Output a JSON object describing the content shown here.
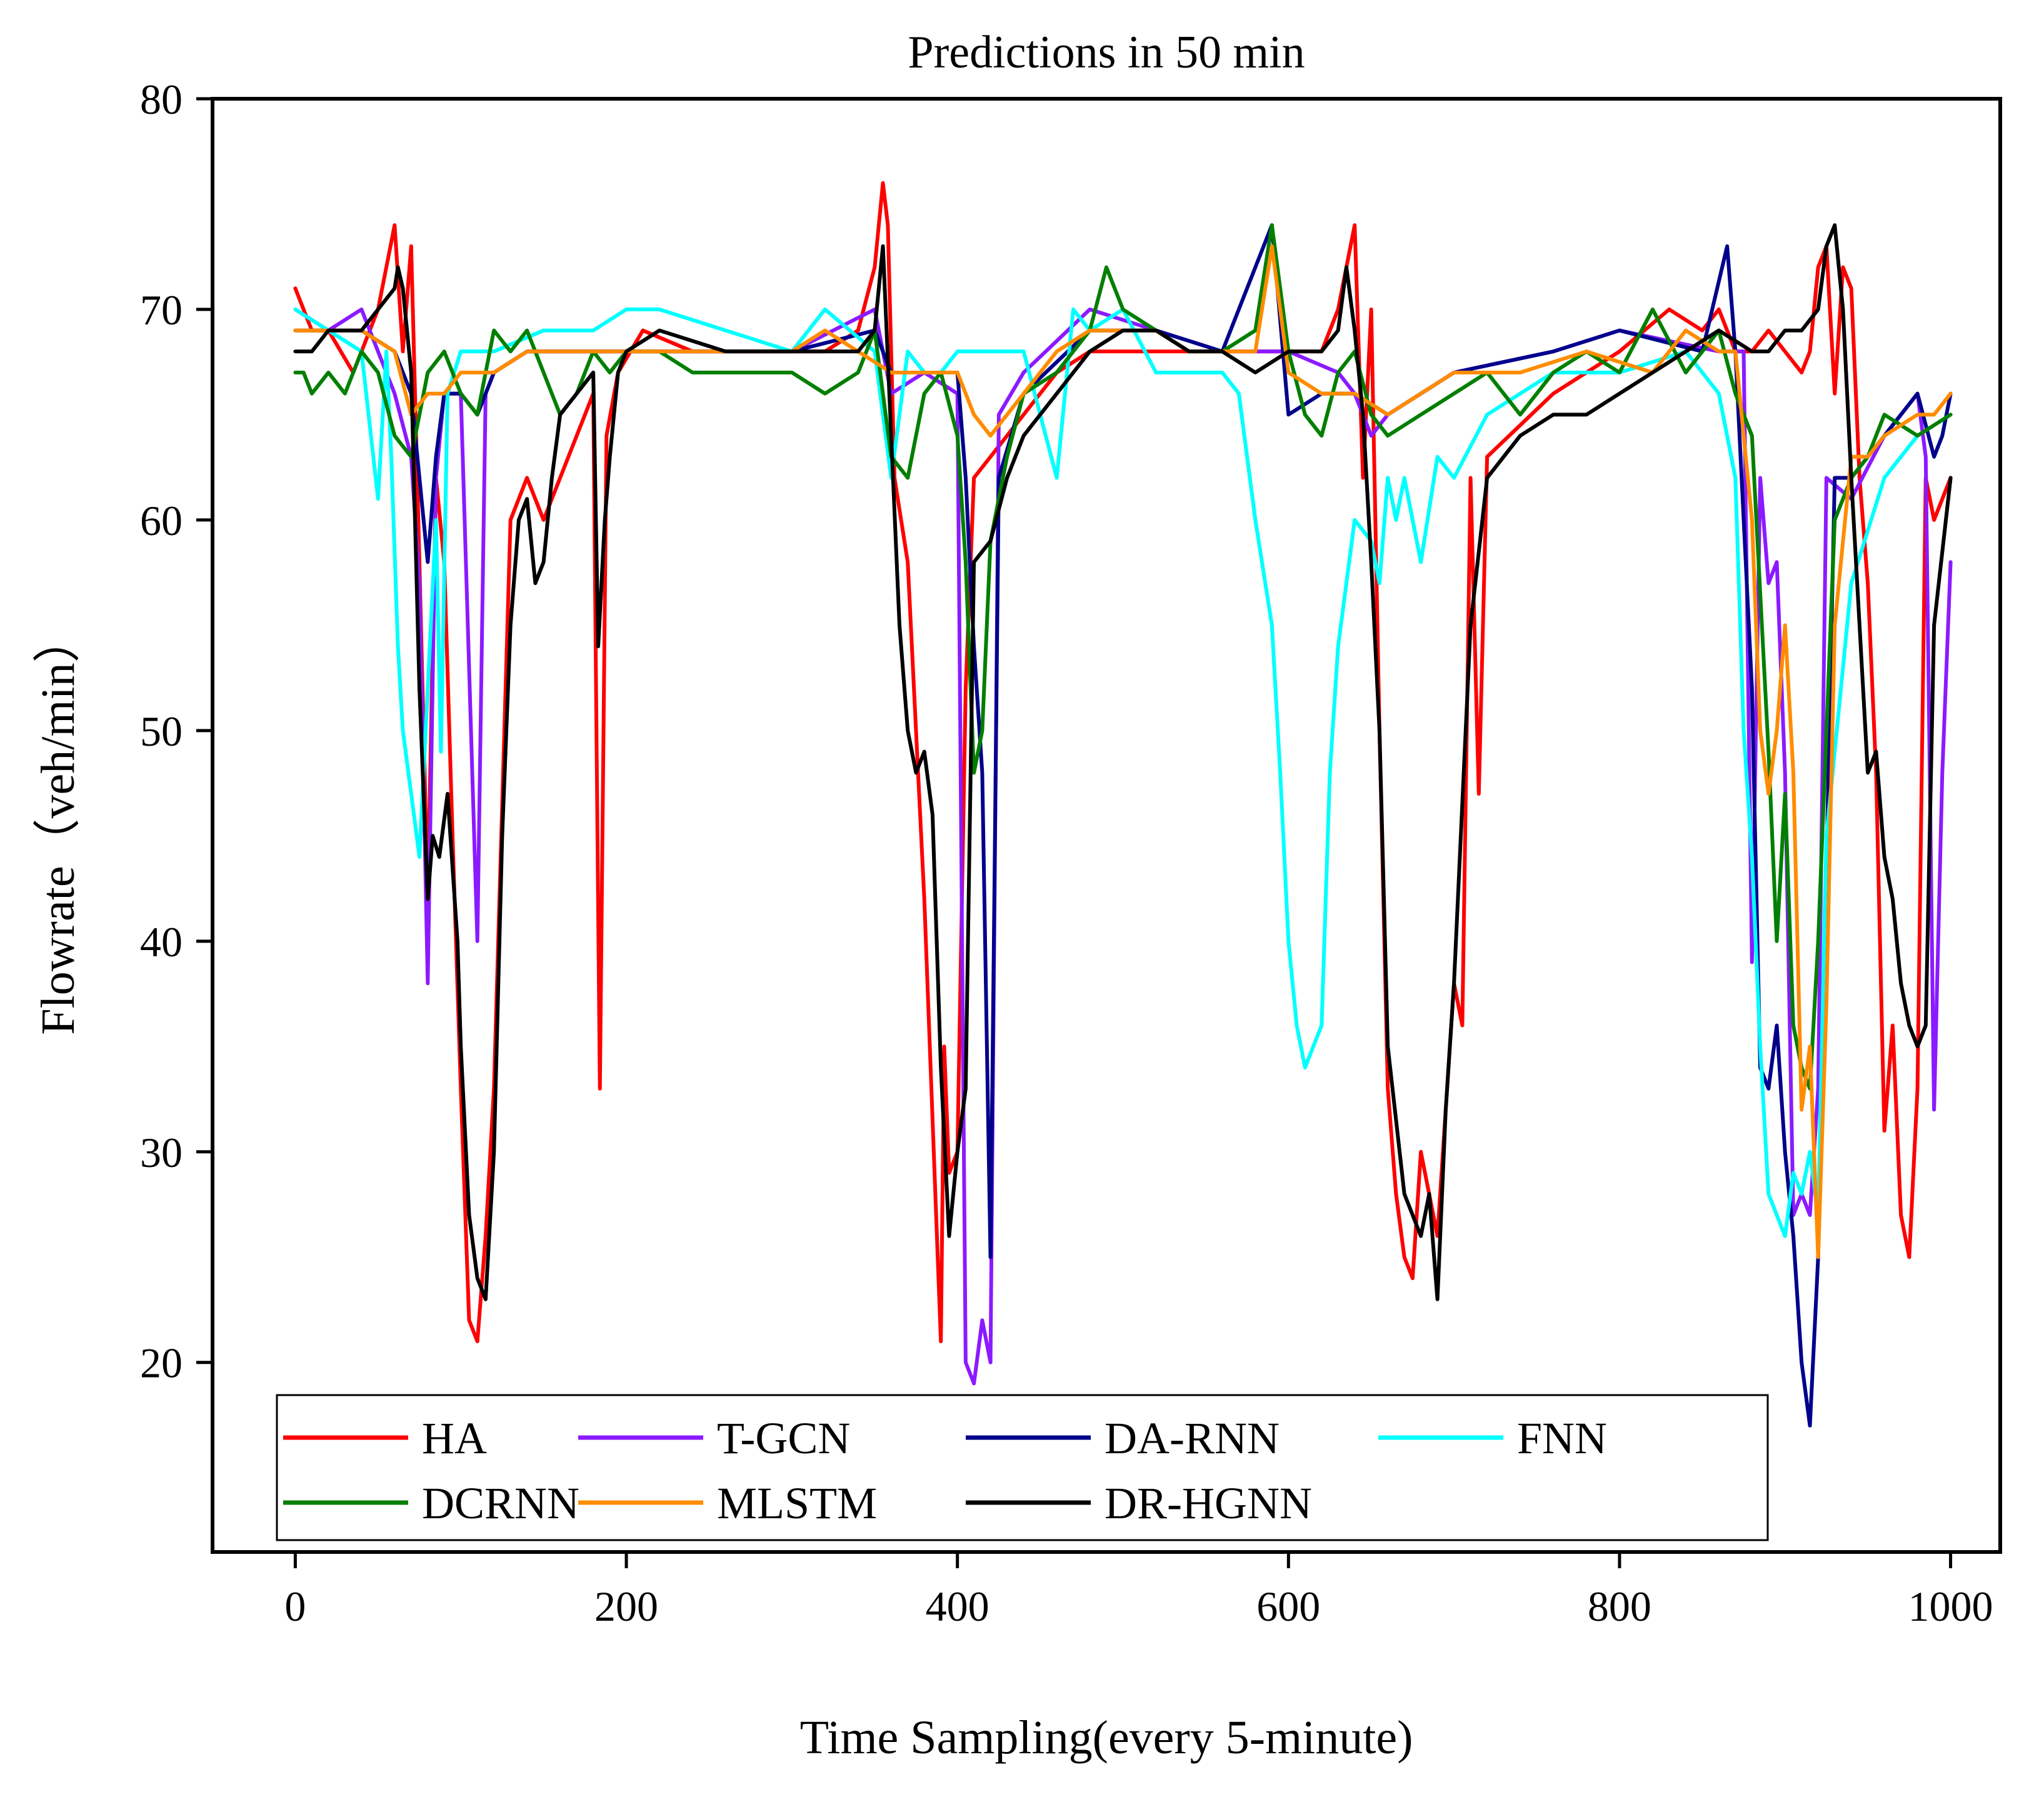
{
  "chart_data": {
    "type": "line",
    "title": "Predictions in 50 min",
    "xlabel": "Time Sampling(every 5-minute)",
    "ylabel": "Flowrate（veh/min）",
    "xlim": [
      -50,
      1030
    ],
    "ylim": [
      11,
      80
    ],
    "xticks": [
      0,
      200,
      400,
      600,
      800,
      1000
    ],
    "yticks": [
      20,
      30,
      40,
      50,
      60,
      70,
      80
    ],
    "grid": false,
    "legend_position": "bottom-left, inside axes, 4 columns",
    "series": [
      {
        "name": "HA",
        "color": "#ff0000",
        "x": [
          0,
          10,
          20,
          35,
          50,
          60,
          65,
          70,
          75,
          80,
          85,
          90,
          95,
          100,
          105,
          110,
          115,
          120,
          130,
          140,
          150,
          160,
          170,
          180,
          184,
          188,
          195,
          210,
          240,
          280,
          320,
          340,
          350,
          355,
          358,
          362,
          370,
          380,
          390,
          392,
          395,
          400,
          405,
          410,
          420,
          440,
          460,
          480,
          500,
          520,
          560,
          600,
          620,
          630,
          640,
          645,
          650,
          655,
          660,
          665,
          670,
          675,
          680,
          690,
          700,
          705,
          710,
          715,
          720,
          760,
          800,
          830,
          850,
          860,
          870,
          880,
          890,
          900,
          910,
          915,
          920,
          925,
          930,
          935,
          940,
          945,
          950,
          955,
          960,
          965,
          970,
          975,
          980,
          985,
          990,
          1000
        ],
        "y": [
          71,
          69,
          69,
          67,
          70,
          74,
          68,
          73,
          58,
          42,
          62,
          58,
          45,
          33,
          22,
          21,
          26,
          33,
          60,
          62,
          60,
          62,
          64,
          66,
          33,
          64,
          67,
          69,
          68,
          68,
          68,
          69,
          72,
          76,
          74,
          62,
          58,
          42,
          21,
          35,
          29,
          30,
          52,
          62,
          63,
          65,
          67,
          68,
          68,
          68,
          68,
          68,
          68,
          70,
          74,
          62,
          70,
          50,
          33,
          28,
          25,
          24,
          30,
          26,
          38,
          36,
          62,
          47,
          63,
          66,
          68,
          70,
          69,
          70,
          68,
          68,
          69,
          68,
          67,
          68,
          72,
          73,
          66,
          72,
          71,
          62,
          57,
          48,
          31,
          36,
          27,
          25,
          33,
          62,
          60,
          62
        ]
      },
      {
        "name": "T-GCN",
        "color": "#8b1aff",
        "x": [
          0,
          20,
          40,
          60,
          70,
          75,
          80,
          85,
          90,
          100,
          110,
          115,
          120,
          140,
          200,
          300,
          350,
          360,
          380,
          400,
          405,
          410,
          415,
          420,
          425,
          440,
          480,
          520,
          560,
          600,
          630,
          640,
          650,
          660,
          700,
          760,
          800,
          860,
          875,
          880,
          885,
          890,
          895,
          900,
          905,
          910,
          915,
          920,
          925,
          940,
          960,
          980,
          985,
          990,
          995,
          1000
        ],
        "y": [
          70,
          69,
          70,
          66,
          63,
          57,
          38,
          62,
          66,
          66,
          40,
          66,
          67,
          68,
          68,
          68,
          70,
          66,
          67,
          66,
          20,
          19,
          22,
          20,
          65,
          67,
          70,
          69,
          68,
          68,
          67,
          66,
          64,
          65,
          67,
          68,
          69,
          68,
          68,
          39,
          62,
          57,
          58,
          48,
          27,
          28,
          27,
          33,
          62,
          61,
          64,
          66,
          63,
          32,
          48,
          58
        ]
      },
      {
        "name": "DA-RNN",
        "color": "#00008b",
        "x": [
          0,
          20,
          40,
          60,
          70,
          75,
          80,
          85,
          90,
          100,
          110,
          120,
          140,
          200,
          300,
          350,
          360,
          380,
          400,
          405,
          410,
          415,
          420,
          425,
          440,
          480,
          520,
          560,
          590,
          600,
          620,
          640,
          660,
          700,
          760,
          800,
          850,
          865,
          870,
          880,
          885,
          890,
          895,
          900,
          905,
          910,
          915,
          920,
          930,
          940,
          960,
          980,
          990,
          995,
          1000
        ],
        "y": [
          69,
          69,
          69,
          68,
          66,
          62,
          58,
          63,
          66,
          66,
          65,
          67,
          68,
          68,
          68,
          69,
          67,
          67,
          67,
          62,
          54,
          48,
          25,
          62,
          66,
          69,
          69,
          68,
          74,
          65,
          66,
          66,
          65,
          67,
          68,
          69,
          68,
          73,
          68,
          52,
          34,
          33,
          36,
          30,
          26,
          20,
          17,
          25,
          62,
          62,
          64,
          66,
          63,
          64,
          66
        ]
      },
      {
        "name": "FNN",
        "color": "#00ffff",
        "x": [
          0,
          20,
          40,
          50,
          55,
          58,
          62,
          65,
          70,
          75,
          80,
          85,
          88,
          92,
          100,
          120,
          150,
          180,
          200,
          220,
          260,
          300,
          320,
          350,
          360,
          370,
          380,
          390,
          400,
          420,
          440,
          460,
          470,
          480,
          500,
          520,
          560,
          570,
          580,
          590,
          595,
          600,
          605,
          610,
          615,
          620,
          625,
          630,
          640,
          650,
          655,
          660,
          665,
          670,
          680,
          690,
          700,
          720,
          760,
          800,
          840,
          860,
          870,
          875,
          880,
          885,
          890,
          895,
          900,
          905,
          910,
          915,
          920,
          925,
          940,
          960,
          980,
          1000
        ],
        "y": [
          70,
          69,
          68,
          61,
          68,
          63,
          54,
          50,
          47,
          44,
          52,
          60,
          49,
          66,
          68,
          68,
          69,
          69,
          70,
          70,
          69,
          68,
          70,
          68,
          62,
          68,
          67,
          67,
          68,
          68,
          68,
          62,
          70,
          69,
          70,
          67,
          67,
          66,
          60,
          55,
          48,
          40,
          36,
          34,
          35,
          36,
          48,
          54,
          60,
          59,
          57,
          62,
          60,
          62,
          58,
          63,
          62,
          65,
          67,
          67,
          68,
          66,
          62,
          50,
          44,
          35,
          28,
          27,
          26,
          29,
          28,
          30,
          27,
          45,
          57,
          62,
          64,
          65
        ]
      },
      {
        "name": "DCRNN",
        "color": "#007f00",
        "x": [
          0,
          5,
          10,
          20,
          30,
          40,
          50,
          60,
          70,
          80,
          90,
          100,
          110,
          120,
          130,
          140,
          150,
          160,
          170,
          180,
          190,
          200,
          220,
          240,
          260,
          280,
          300,
          320,
          340,
          350,
          360,
          370,
          380,
          390,
          400,
          405,
          410,
          415,
          420,
          430,
          440,
          460,
          470,
          480,
          490,
          500,
          520,
          540,
          560,
          580,
          590,
          600,
          610,
          620,
          630,
          640,
          650,
          660,
          680,
          700,
          720,
          740,
          760,
          780,
          800,
          820,
          840,
          860,
          870,
          880,
          890,
          895,
          900,
          905,
          910,
          915,
          920,
          930,
          940,
          950,
          960,
          980,
          1000
        ],
        "y": [
          67,
          67,
          66,
          67,
          66,
          68,
          67,
          64,
          63,
          67,
          68,
          66,
          65,
          69,
          68,
          69,
          67,
          65,
          66,
          68,
          67,
          68,
          68,
          67,
          67,
          67,
          67,
          66,
          67,
          69,
          63,
          62,
          66,
          67,
          64,
          58,
          48,
          50,
          59,
          63,
          66,
          67,
          68,
          69,
          72,
          70,
          69,
          68,
          68,
          69,
          74,
          68,
          65,
          64,
          67,
          68,
          65,
          64,
          65,
          66,
          67,
          65,
          67,
          68,
          67,
          70,
          67,
          69,
          66,
          64,
          49,
          40,
          47,
          36,
          34,
          33,
          40,
          60,
          62,
          63,
          65,
          64,
          65
        ]
      },
      {
        "name": "MLSTM",
        "color": "#ff8c00",
        "x": [
          0,
          20,
          40,
          60,
          70,
          80,
          90,
          100,
          120,
          140,
          160,
          180,
          200,
          220,
          260,
          300,
          320,
          340,
          360,
          380,
          400,
          410,
          420,
          440,
          460,
          480,
          500,
          520,
          540,
          560,
          580,
          590,
          595,
          600,
          620,
          640,
          660,
          680,
          700,
          740,
          780,
          820,
          840,
          860,
          870,
          880,
          885,
          890,
          895,
          900,
          905,
          910,
          915,
          920,
          925,
          930,
          940,
          950,
          960,
          980,
          990,
          1000
        ],
        "y": [
          69,
          69,
          69,
          68,
          65,
          66,
          66,
          67,
          67,
          68,
          68,
          68,
          68,
          68,
          68,
          68,
          69,
          68,
          67,
          67,
          67,
          65,
          64,
          66,
          68,
          69,
          69,
          69,
          68,
          68,
          68,
          73,
          70,
          67,
          66,
          66,
          65,
          66,
          67,
          67,
          68,
          67,
          69,
          68,
          68,
          60,
          50,
          47,
          50,
          55,
          48,
          32,
          35,
          25,
          37,
          55,
          63,
          63,
          64,
          65,
          65,
          66
        ]
      },
      {
        "name": "DR-HGNN",
        "color": "#000000",
        "x": [
          0,
          10,
          20,
          40,
          50,
          60,
          62,
          65,
          70,
          75,
          80,
          83,
          87,
          92,
          98,
          100,
          105,
          110,
          115,
          120,
          125,
          130,
          135,
          140,
          145,
          150,
          155,
          160,
          170,
          180,
          183,
          187,
          190,
          195,
          200,
          220,
          260,
          300,
          340,
          350,
          355,
          360,
          365,
          370,
          375,
          380,
          385,
          390,
          395,
          400,
          405,
          410,
          420,
          430,
          440,
          460,
          480,
          500,
          520,
          540,
          560,
          580,
          600,
          620,
          630,
          635,
          640,
          645,
          650,
          655,
          660,
          670,
          680,
          685,
          690,
          695,
          700,
          710,
          720,
          740,
          760,
          780,
          800,
          820,
          840,
          860,
          880,
          890,
          900,
          910,
          920,
          925,
          930,
          935,
          940,
          945,
          950,
          955,
          960,
          965,
          970,
          975,
          980,
          985,
          990,
          1000
        ],
        "y": [
          68,
          68,
          69,
          69,
          70,
          71,
          72,
          71,
          67,
          52,
          42,
          45,
          44,
          47,
          40,
          35,
          27,
          24,
          23,
          30,
          45,
          55,
          60,
          61,
          57,
          58,
          62,
          65,
          66,
          67,
          54,
          60,
          63,
          67,
          68,
          69,
          68,
          68,
          68,
          69,
          73,
          64,
          55,
          50,
          48,
          49,
          46,
          34,
          26,
          30,
          33,
          58,
          59,
          62,
          64,
          66,
          68,
          69,
          69,
          68,
          68,
          67,
          68,
          68,
          69,
          72,
          69,
          65,
          58,
          50,
          35,
          28,
          26,
          28,
          23,
          32,
          38,
          55,
          62,
          64,
          65,
          65,
          66,
          67,
          68,
          69,
          68,
          68,
          69,
          69,
          70,
          73,
          74,
          70,
          62,
          55,
          48,
          49,
          44,
          42,
          38,
          36,
          35,
          36,
          55,
          62
        ]
      }
    ]
  }
}
